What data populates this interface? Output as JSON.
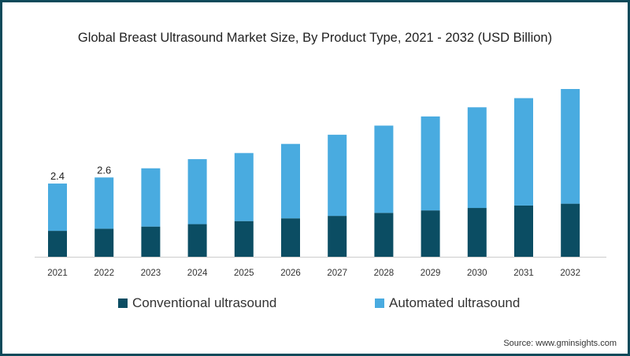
{
  "chart_data": {
    "type": "bar",
    "stacked": true,
    "title": "Global Breast Ultrasound Market Size, By Product Type, 2021 - 2032 (USD Billion)",
    "categories": [
      "2021",
      "2022",
      "2023",
      "2024",
      "2025",
      "2026",
      "2027",
      "2028",
      "2029",
      "2030",
      "2031",
      "2032"
    ],
    "series": [
      {
        "name": "Conventional ultrasound",
        "color": "#0b4d63",
        "values": [
          0.85,
          0.92,
          0.99,
          1.07,
          1.17,
          1.26,
          1.34,
          1.44,
          1.52,
          1.6,
          1.68,
          1.74
        ]
      },
      {
        "name": "Automated ultrasound",
        "color": "#49abe0",
        "values": [
          1.55,
          1.68,
          1.91,
          2.13,
          2.23,
          2.44,
          2.66,
          2.86,
          3.08,
          3.3,
          3.52,
          3.76
        ]
      }
    ],
    "data_labels": [
      "2.4",
      "2.6",
      "",
      "",
      "",
      "",
      "",
      "",
      "",
      "",
      "",
      ""
    ],
    "ylim": [
      0,
      5.5
    ],
    "legend_position": "bottom",
    "grid": false
  },
  "source": "Source: www.gminsights.com"
}
